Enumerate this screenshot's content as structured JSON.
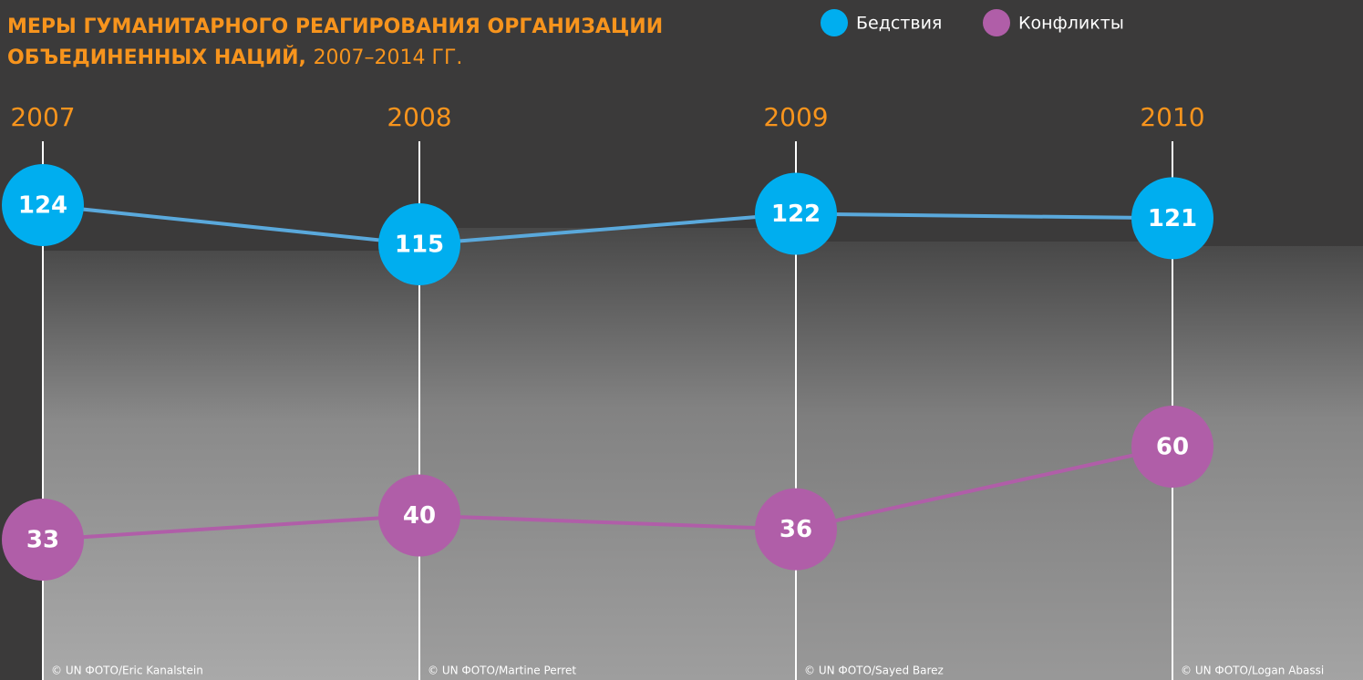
{
  "chart_data": {
    "type": "line",
    "title": "МЕРЫ ГУМАНИТАРНОГО РЕАГИРОВАНИЯ ОРГАНИЗАЦИИ ОБЪЕДИНЕННЫХ НАЦИЙ,",
    "subtitle": "2007–2014 ГГ.",
    "categories": [
      "2007",
      "2008",
      "2009",
      "2010"
    ],
    "series": [
      {
        "name": "Бедствия",
        "color": "#00aeef",
        "line_color": "#5aa9dc",
        "values": [
          124,
          115,
          122,
          121
        ]
      },
      {
        "name": "Конфликты",
        "color": "#b05ea8",
        "line_color": "#b05ea8",
        "values": [
          33,
          40,
          36,
          60
        ]
      }
    ],
    "credits": [
      "© UN ФОТО/Eric Kanalstein",
      "© UN ФОТО/Martine Perret",
      "© UN ФОТО/Sayed Barez",
      "© UN ФОТО/Logan Abassi"
    ],
    "category_color": "#f7941d"
  }
}
